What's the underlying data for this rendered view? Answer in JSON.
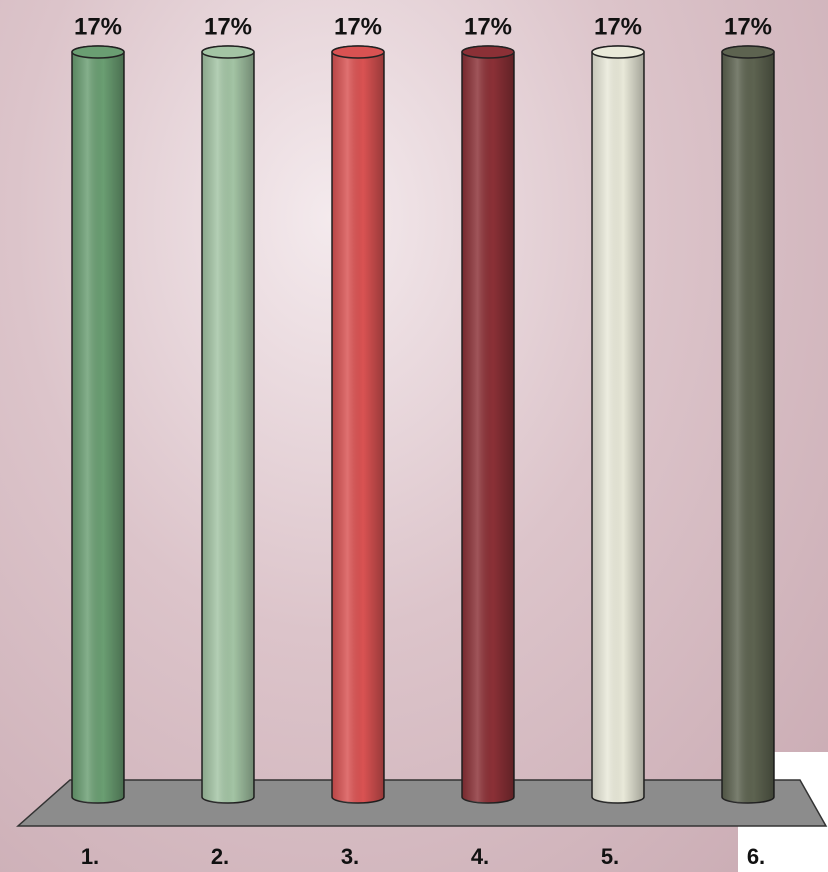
{
  "chart_data": {
    "type": "bar",
    "categories": [
      "1.",
      "2.",
      "3.",
      "4.",
      "5.",
      "6."
    ],
    "series": [
      {
        "values": [
          17,
          17,
          17,
          17,
          17,
          17
        ],
        "value_labels": [
          "17%",
          "17%",
          "17%",
          "17%",
          "17%",
          "17%"
        ],
        "colors": [
          "#6a9e72",
          "#a3c4a4",
          "#d95252",
          "#8b3036",
          "#e9e9d9",
          "#5d6350"
        ]
      }
    ]
  }
}
